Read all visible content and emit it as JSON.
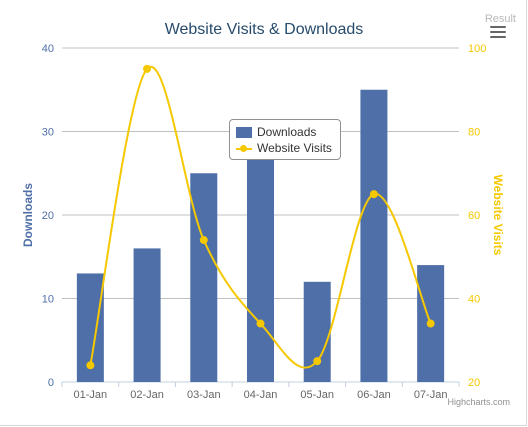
{
  "result_label": "Result",
  "credits": "Highcharts.com",
  "colors": {
    "downloads": "#4f6fa8",
    "visits": "#f5c800",
    "left_axis_text": "#4f6fa8",
    "right_axis_text": "#f5c800"
  },
  "chart_data": {
    "type": "bar",
    "title": "Website Visits & Downloads",
    "categories": [
      "01-Jan",
      "02-Jan",
      "03-Jan",
      "04-Jan",
      "05-Jan",
      "06-Jan",
      "07-Jan"
    ],
    "y_left": {
      "label": "Downloads",
      "ylim": [
        0,
        40
      ],
      "ticks": [
        "0",
        "10",
        "20",
        "30",
        "40"
      ]
    },
    "y_right": {
      "label": "Website Visits",
      "ylim": [
        20,
        100
      ],
      "ticks": [
        "20",
        "40",
        "60",
        "80",
        "100"
      ]
    },
    "series": [
      {
        "name": "Downloads",
        "type": "bar",
        "axis": "left",
        "values": [
          13,
          16,
          25,
          28,
          12,
          35,
          14
        ]
      },
      {
        "name": "Website Visits",
        "type": "spline",
        "axis": "right",
        "values": [
          24,
          95,
          54,
          34,
          25,
          65,
          34
        ]
      }
    ],
    "grid": true,
    "legend": "top-center"
  }
}
